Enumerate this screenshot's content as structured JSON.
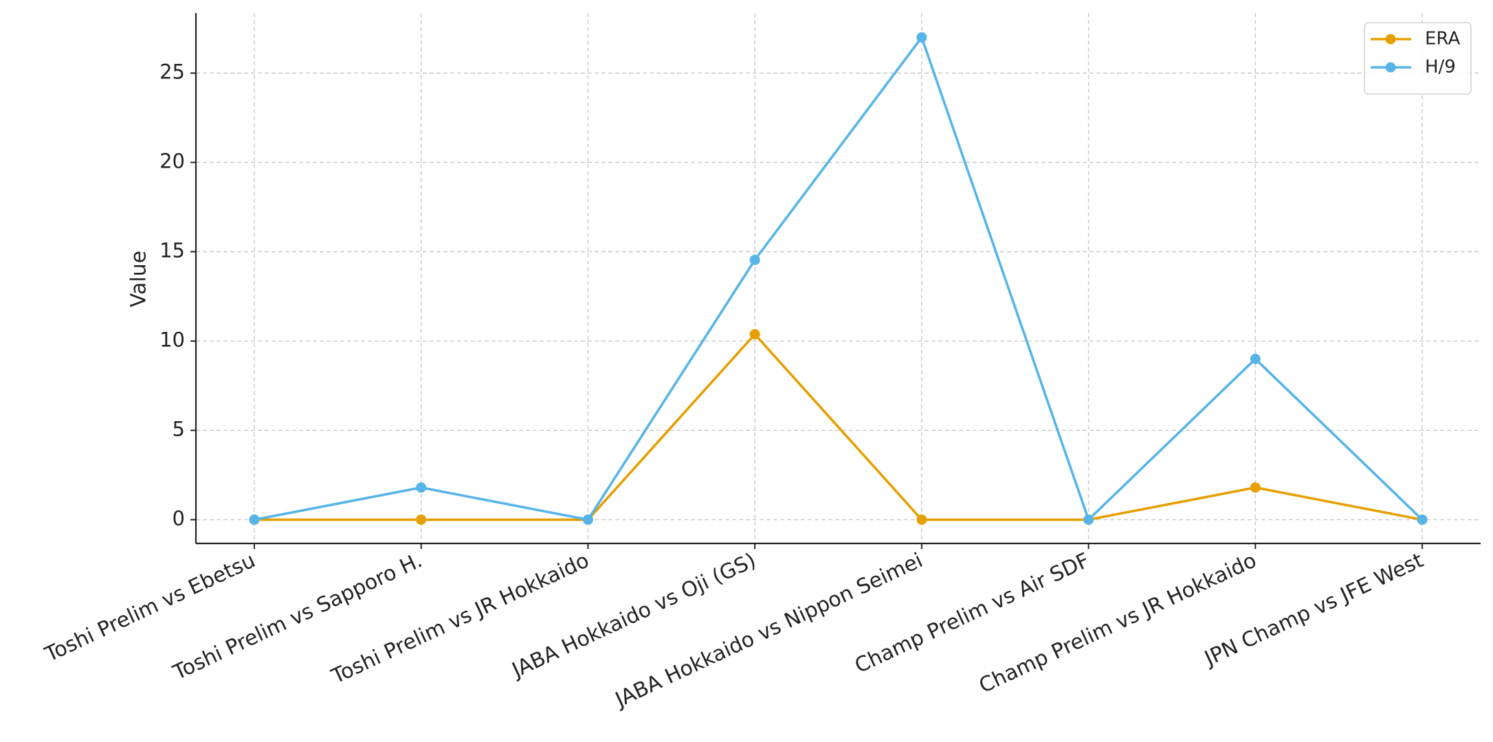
{
  "chart_data": {
    "type": "line",
    "categories": [
      "Toshi Prelim vs Ebetsu",
      "Toshi Prelim vs Sapporo H.",
      "Toshi Prelim vs JR Hokkaido",
      "JABA Hokkaido vs Oji (GS)",
      "JABA Hokkaido vs Nippon Seimei",
      "Champ Prelim vs Air SDF",
      "Champ Prelim vs JR Hokkaido",
      "JPN Champ vs JFE West"
    ],
    "ylabel": "Value",
    "series": [
      {
        "name": "ERA",
        "color": "#e69f00",
        "values": [
          0,
          0,
          0,
          10.38,
          0,
          0,
          1.8,
          0
        ]
      },
      {
        "name": "H/9",
        "color": "#56b4e9",
        "values": [
          0,
          1.8,
          0,
          14.54,
          27,
          0,
          9,
          0
        ]
      }
    ],
    "ylim": [
      -1.33,
      28.36
    ],
    "yticks": [
      0,
      5,
      10,
      15,
      20,
      25
    ],
    "grid": true,
    "legend": "upper right"
  }
}
